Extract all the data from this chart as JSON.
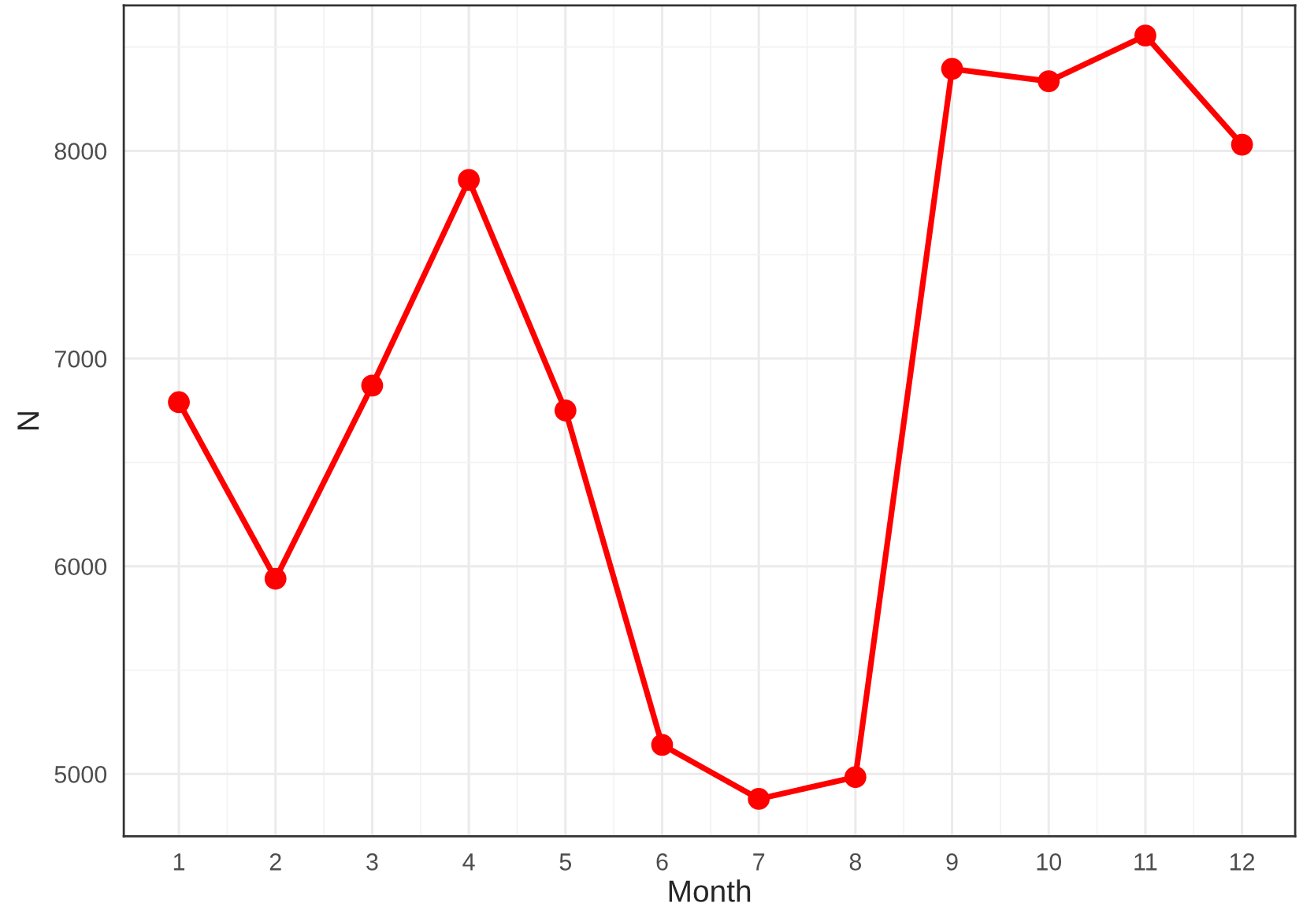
{
  "chart_data": {
    "type": "line",
    "xlabel": "Month",
    "ylabel": "N",
    "x": [
      1,
      2,
      3,
      4,
      5,
      6,
      7,
      8,
      9,
      10,
      11,
      12
    ],
    "series": [
      {
        "color": "#ff0000",
        "values": [
          6790,
          5940,
          6870,
          7860,
          6750,
          5140,
          4880,
          4985,
          8395,
          8335,
          8555,
          8030
        ]
      }
    ],
    "xlim": [
      0.43,
      12.55
    ],
    "xticks": [
      1,
      2,
      3,
      4,
      5,
      6,
      7,
      8,
      9,
      10,
      11,
      12
    ],
    "ylim": [
      4700,
      8700
    ],
    "yticks": [
      5000,
      6000,
      7000,
      8000
    ],
    "grid": true,
    "marker": "circle",
    "line_style": "solid"
  }
}
